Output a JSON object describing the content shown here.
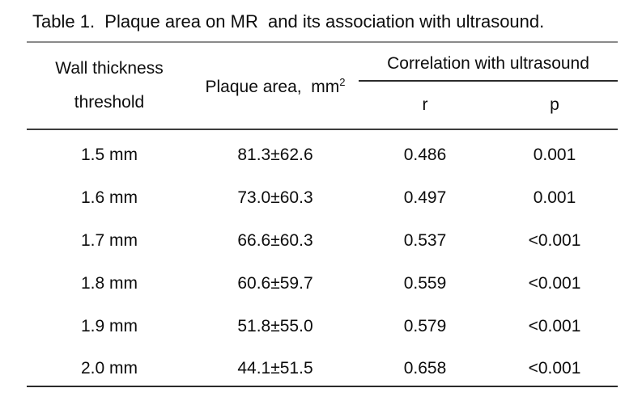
{
  "title": "Table 1.  Plaque area on MR  and its association with ultrasound.",
  "columns": {
    "wall_thickness_line1": "Wall thickness",
    "wall_thickness_line2": "threshold",
    "plaque_area_text": "Plaque area,  mm",
    "plaque_area_sup": "2",
    "correlation_group": "Correlation with ultrasound",
    "r": "r",
    "p": "p"
  },
  "rows": [
    {
      "threshold": "1.5 mm",
      "area": "81.3±62.6",
      "r": "0.486",
      "p": "0.001"
    },
    {
      "threshold": "1.6 mm",
      "area": "73.0±60.3",
      "r": "0.497",
      "p": "0.001"
    },
    {
      "threshold": "1.7 mm",
      "area": "66.6±60.3",
      "r": "0.537",
      "p": "<0.001"
    },
    {
      "threshold": "1.8 mm",
      "area": "60.6±59.7",
      "r": "0.559",
      "p": "<0.001"
    },
    {
      "threshold": "1.9 mm",
      "area": "51.8±55.0",
      "r": "0.579",
      "p": "<0.001"
    },
    {
      "threshold": "2.0 mm",
      "area": "44.1±51.5",
      "r": "0.658",
      "p": "<0.001"
    }
  ],
  "colors": {
    "background": "#ffffff",
    "text": "#0d0d0d",
    "title_rule": "#8a8a8a",
    "header_rule": "#3d3d3d",
    "bottom_rule": "#2b2b2b"
  }
}
